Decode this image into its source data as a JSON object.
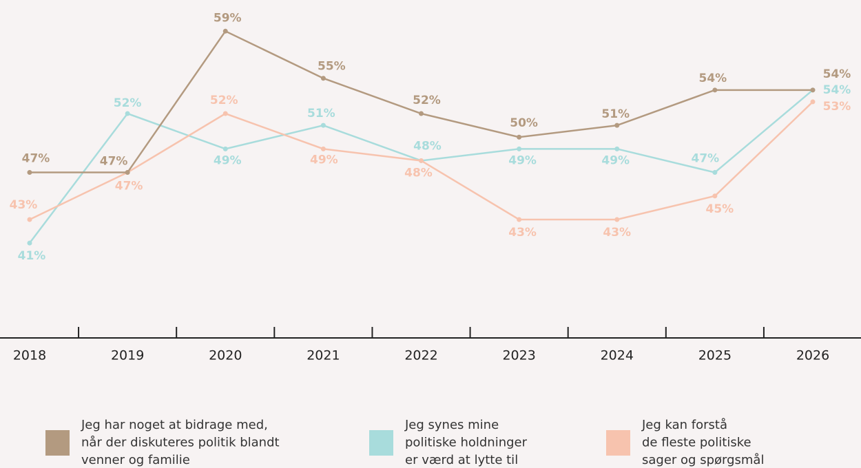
{
  "chart_data": {
    "type": "line",
    "categories": [
      "2018",
      "2019",
      "2020",
      "2021",
      "2022",
      "2023",
      "2024",
      "2025",
      "2026"
    ],
    "ylim": [
      33,
      62
    ],
    "series": [
      {
        "name": "Jeg har noget at bidrage med,\nnår der diskuteres politik blandt\nvenner og familie",
        "color": "#b39a80",
        "values": [
          47,
          47,
          59,
          55,
          52,
          50,
          51,
          54,
          54
        ],
        "value_labels": [
          "47%",
          "47%",
          "59%",
          "55%",
          "52%",
          "50%",
          "51%",
          "54%",
          "54%"
        ]
      },
      {
        "name": "Jeg synes mine\npolitiske holdninger\ner værd at lytte til",
        "color": "#a8dcdc",
        "values": [
          41,
          52,
          49,
          51,
          48,
          49,
          49,
          47,
          54
        ],
        "value_labels": [
          "41%",
          "52%",
          "49%",
          "51%",
          "48%",
          "49%",
          "49%",
          "47%",
          "54%"
        ]
      },
      {
        "name": "Jeg kan forstå\nde fleste politiske\nsager og spørgsmål",
        "color": "#f7c3ae",
        "values": [
          43,
          47,
          52,
          49,
          48,
          43,
          43,
          45,
          53
        ],
        "value_labels": [
          "43%",
          "47%",
          "52%",
          "49%",
          "48%",
          "43%",
          "43%",
          "45%",
          "53%"
        ]
      }
    ]
  }
}
